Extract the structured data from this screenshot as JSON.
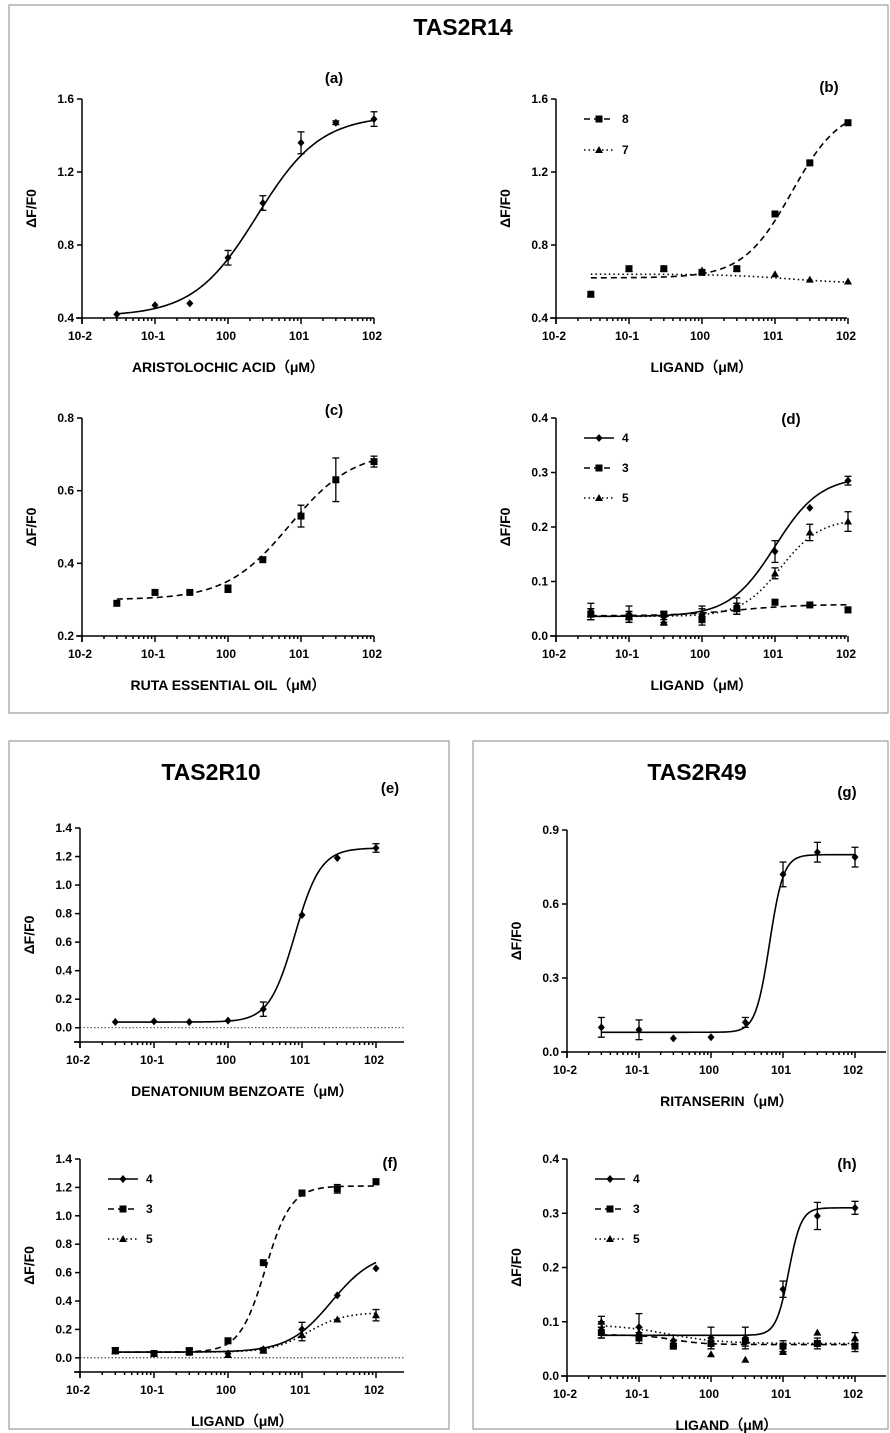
{
  "figure": {
    "title_top": "TAS2R14",
    "title_left": "TAS2R10",
    "title_right": "TAS2R49"
  },
  "chart_data": [
    {
      "id": "a",
      "panel_label": "(a)",
      "type": "scatter",
      "xlabel": "ARISTOLOCHIC ACID（μM）",
      "ylabel": "ΔF/F0",
      "x_scale": "log",
      "xlim": [
        0.01,
        100
      ],
      "ylim": [
        0.4,
        1.6
      ],
      "y_ticks": [
        "0.4",
        "0.8",
        "1.2",
        "1.6"
      ],
      "x_ticks": [
        "10-2",
        "10-1",
        "100",
        "101",
        "102"
      ],
      "legend_position": "none",
      "baseline": false,
      "series": [
        {
          "name": "",
          "marker": "diamond",
          "line": "solid",
          "x": [
            0.03,
            0.1,
            0.3,
            1,
            3,
            10,
            30,
            100
          ],
          "y": [
            0.42,
            0.47,
            0.48,
            0.73,
            1.03,
            1.36,
            1.47,
            1.49
          ],
          "err": [
            0,
            0,
            0,
            0.04,
            0.04,
            0.06,
            0.01,
            0.04
          ],
          "fit": {
            "bottom": 0.41,
            "top": 1.51,
            "ec50": 2.5,
            "hill": 1.0
          }
        }
      ]
    },
    {
      "id": "b",
      "panel_label": "(b)",
      "type": "scatter",
      "xlabel": "LIGAND（μM）",
      "ylabel": "ΔF/F0",
      "x_scale": "log",
      "xlim": [
        0.01,
        100
      ],
      "ylim": [
        0.4,
        1.6
      ],
      "y_ticks": [
        "0.4",
        "0.8",
        "1.2",
        "1.6"
      ],
      "x_ticks": [
        "10-2",
        "10-1",
        "100",
        "101",
        "102"
      ],
      "legend_position": "top-left",
      "baseline": false,
      "series": [
        {
          "name": "8",
          "marker": "square",
          "line": "dashed",
          "x": [
            0.03,
            0.1,
            0.3,
            1,
            3,
            10,
            30,
            100
          ],
          "y": [
            0.53,
            0.67,
            0.67,
            0.65,
            0.67,
            0.97,
            1.25,
            1.47
          ],
          "err": [
            0,
            0,
            0,
            0,
            0,
            0,
            0,
            0
          ],
          "fit": {
            "bottom": 0.62,
            "top": 1.56,
            "ec50": 17,
            "hill": 1.3
          }
        },
        {
          "name": "7",
          "marker": "triangle",
          "line": "dotted",
          "x": [
            0.03,
            0.1,
            0.3,
            1,
            3,
            10,
            30,
            100
          ],
          "y": [
            0.53,
            0.67,
            0.67,
            0.66,
            0.67,
            0.64,
            0.61,
            0.6
          ],
          "err": [
            0,
            0,
            0,
            0,
            0,
            0,
            0,
            0
          ],
          "fit": {
            "bottom": 0.64,
            "top": 0.59,
            "ec50": 15,
            "hill": 1.0,
            "lowclip": 0.62
          }
        }
      ]
    },
    {
      "id": "c",
      "panel_label": "(c)",
      "type": "scatter",
      "xlabel": "RUTA ESSENTIAL OIL（μM）",
      "ylabel": "ΔF/F0",
      "x_scale": "log",
      "xlim": [
        0.01,
        100
      ],
      "ylim": [
        0.2,
        0.8
      ],
      "y_ticks": [
        "0.2",
        "0.4",
        "0.6",
        "0.8"
      ],
      "x_ticks": [
        "10-2",
        "10-1",
        "100",
        "101",
        "102"
      ],
      "legend_position": "none",
      "baseline": false,
      "series": [
        {
          "name": "",
          "marker": "square",
          "line": "dashed",
          "x": [
            0.03,
            0.1,
            0.3,
            1,
            3,
            10,
            30,
            100
          ],
          "y": [
            0.29,
            0.32,
            0.32,
            0.33,
            0.41,
            0.53,
            0.63,
            0.68
          ],
          "err": [
            0,
            0,
            0,
            0.01,
            0,
            0.03,
            0.06,
            0.015
          ],
          "fit": {
            "bottom": 0.3,
            "top": 0.71,
            "ec50": 7,
            "hill": 1.0
          }
        }
      ]
    },
    {
      "id": "d",
      "panel_label": "(d)",
      "type": "scatter",
      "xlabel": "LIGAND（μM）",
      "ylabel": "ΔF/F0",
      "x_scale": "log",
      "xlim": [
        0.01,
        100
      ],
      "ylim": [
        0,
        0.4
      ],
      "y_ticks": [
        "0.0",
        "0.1",
        "0.2",
        "0.3",
        "0.4"
      ],
      "x_ticks": [
        "10-2",
        "10-1",
        "100",
        "101",
        "102"
      ],
      "legend_position": "top-left",
      "baseline": false,
      "series": [
        {
          "name": "4",
          "marker": "diamond",
          "line": "solid",
          "x": [
            0.03,
            0.1,
            0.3,
            1,
            3,
            10,
            30,
            100
          ],
          "y": [
            0.045,
            0.04,
            0.035,
            0.04,
            0.055,
            0.155,
            0.235,
            0.285
          ],
          "err": [
            0.015,
            0.015,
            0.01,
            0.015,
            0.015,
            0.02,
            0,
            0.008
          ],
          "fit": {
            "bottom": 0.036,
            "top": 0.293,
            "ec50": 10,
            "hill": 1.4
          }
        },
        {
          "name": "3",
          "marker": "square",
          "line": "dashed",
          "x": [
            0.03,
            0.1,
            0.3,
            1,
            3,
            10,
            30,
            100
          ],
          "y": [
            0.04,
            0.035,
            0.04,
            0.03,
            0.05,
            0.062,
            0.057,
            0.048
          ],
          "err": [
            0.01,
            0.01,
            0.005,
            0.01,
            0.01,
            0.005,
            0,
            0.005
          ],
          "fit": {
            "bottom": 0.037,
            "top": 0.058,
            "ec50": 3,
            "hill": 1.0
          }
        },
        {
          "name": "5",
          "marker": "triangle",
          "line": "dotted",
          "x": [
            0.03,
            0.1,
            0.3,
            1,
            3,
            10,
            30,
            100
          ],
          "y": [
            0.04,
            0.035,
            0.025,
            0.04,
            0.05,
            0.115,
            0.19,
            0.21
          ],
          "err": [
            0.01,
            0.01,
            0.005,
            0.01,
            0.01,
            0.01,
            0.015,
            0.018
          ],
          "fit": {
            "bottom": 0.036,
            "top": 0.215,
            "ec50": 12,
            "hill": 1.6
          }
        }
      ]
    },
    {
      "id": "e",
      "panel_label": "(e)",
      "type": "scatter",
      "xlabel": "DENATONIUM BENZOATE（μM）",
      "ylabel": "ΔF/F0",
      "x_scale": "log",
      "xlim": [
        0.01,
        300
      ],
      "ylim": [
        -0.1,
        1.4
      ],
      "y_ticks": [
        "0.0",
        "0.2",
        "0.4",
        "0.6",
        "0.8",
        "1.0",
        "1.2",
        "1.4"
      ],
      "x_ticks": [
        "10-2",
        "10-1",
        "100",
        "101",
        "102"
      ],
      "legend_position": "none",
      "baseline": true,
      "series": [
        {
          "name": "",
          "marker": "diamond",
          "line": "solid",
          "x": [
            0.03,
            0.1,
            0.3,
            1,
            3,
            10,
            30,
            100
          ],
          "y": [
            0.04,
            0.045,
            0.04,
            0.05,
            0.13,
            0.79,
            1.19,
            1.26
          ],
          "err": [
            0,
            0,
            0,
            0,
            0.05,
            0,
            0,
            0.03
          ],
          "fit": {
            "bottom": 0.04,
            "top": 1.26,
            "ec50": 8,
            "hill": 2.5
          }
        }
      ]
    },
    {
      "id": "f",
      "panel_label": "(f)",
      "type": "scatter",
      "xlabel": "LIGAND（μM）",
      "ylabel": "ΔF/F0",
      "x_scale": "log",
      "xlim": [
        0.01,
        300
      ],
      "ylim": [
        -0.1,
        1.4
      ],
      "y_ticks": [
        "0.0",
        "0.2",
        "0.4",
        "0.6",
        "0.8",
        "1.0",
        "1.2",
        "1.4"
      ],
      "x_ticks": [
        "10-2",
        "10-1",
        "100",
        "101",
        "102"
      ],
      "legend_position": "top-left",
      "baseline": true,
      "series": [
        {
          "name": "4",
          "marker": "diamond",
          "line": "solid",
          "x": [
            0.03,
            0.1,
            0.3,
            1,
            3,
            10,
            30,
            100
          ],
          "y": [
            0.05,
            0.03,
            0.04,
            0.03,
            0.06,
            0.2,
            0.44,
            0.63
          ],
          "err": [
            0.02,
            0,
            0.02,
            0,
            0.01,
            0.05,
            0,
            0
          ],
          "fit": {
            "bottom": 0.04,
            "top": 0.75,
            "ec50": 25,
            "hill": 1.5
          }
        },
        {
          "name": "3",
          "marker": "square",
          "line": "dashed",
          "x": [
            0.03,
            0.1,
            0.3,
            1,
            3,
            10,
            30,
            100
          ],
          "y": [
            0.05,
            0.03,
            0.05,
            0.12,
            0.67,
            1.16,
            1.19,
            1.24
          ],
          "err": [
            0.02,
            0,
            0.02,
            0.01,
            0,
            0.02,
            0.03,
            0.02
          ],
          "fit": {
            "bottom": 0.04,
            "top": 1.21,
            "ec50": 3.2,
            "hill": 2.5
          }
        },
        {
          "name": "5",
          "marker": "triangle",
          "line": "dotted",
          "x": [
            0.03,
            0.1,
            0.3,
            1,
            3,
            10,
            30,
            100
          ],
          "y": [
            0.05,
            0.03,
            0.04,
            0.02,
            0.05,
            0.16,
            0.27,
            0.3
          ],
          "err": [
            0.02,
            0,
            0.02,
            0,
            0.01,
            0.04,
            0,
            0.04
          ],
          "fit": {
            "bottom": 0.04,
            "top": 0.32,
            "ec50": 12,
            "hill": 1.8
          }
        }
      ]
    },
    {
      "id": "g",
      "panel_label": "(g)",
      "type": "scatter",
      "xlabel": "RITANSERIN（μM）",
      "ylabel": "ΔF/F0",
      "x_scale": "log",
      "xlim": [
        0.01,
        300
      ],
      "ylim": [
        0,
        0.9
      ],
      "y_ticks": [
        "0.0",
        "0.3",
        "0.6",
        "0.9"
      ],
      "x_ticks": [
        "10-2",
        "10-1",
        "100",
        "101",
        "102"
      ],
      "legend_position": "none",
      "baseline": false,
      "series": [
        {
          "name": "",
          "marker": "diamond",
          "line": "solid",
          "x": [
            0.03,
            0.1,
            0.3,
            1,
            3,
            10,
            30,
            100
          ],
          "y": [
            0.1,
            0.09,
            0.055,
            0.06,
            0.12,
            0.72,
            0.81,
            0.79
          ],
          "err": [
            0.04,
            0.04,
            0,
            0,
            0.02,
            0.05,
            0.04,
            0.04
          ],
          "fit": {
            "bottom": 0.08,
            "top": 0.8,
            "ec50": 6.5,
            "hill": 4.5
          }
        }
      ]
    },
    {
      "id": "h",
      "panel_label": "(h)",
      "type": "scatter",
      "xlabel": "LIGAND（μM）",
      "ylabel": "ΔF/F0",
      "x_scale": "log",
      "xlim": [
        0.01,
        300
      ],
      "ylim": [
        0,
        0.4
      ],
      "y_ticks": [
        "0.0",
        "0.1",
        "0.2",
        "0.3",
        "0.4"
      ],
      "x_ticks": [
        "10-2",
        "10-1",
        "100",
        "101",
        "102"
      ],
      "legend_position": "top-left",
      "baseline": false,
      "series": [
        {
          "name": "4",
          "marker": "diamond",
          "line": "solid",
          "x": [
            0.03,
            0.1,
            0.3,
            1,
            3,
            10,
            30,
            100
          ],
          "y": [
            0.085,
            0.09,
            0.065,
            0.07,
            0.07,
            0.16,
            0.295,
            0.31
          ],
          "err": [
            0.015,
            0.025,
            0.01,
            0.02,
            0.02,
            0.015,
            0.025,
            0.012
          ],
          "fit": {
            "bottom": 0.075,
            "top": 0.31,
            "ec50": 12,
            "hill": 5
          }
        },
        {
          "name": "3",
          "marker": "square",
          "line": "dashed",
          "x": [
            0.03,
            0.1,
            0.3,
            1,
            3,
            10,
            30,
            100
          ],
          "y": [
            0.08,
            0.07,
            0.055,
            0.06,
            0.065,
            0.055,
            0.06,
            0.055
          ],
          "err": [
            0.01,
            0.01,
            0.005,
            0.01,
            0.01,
            0.01,
            0.01,
            0.01
          ],
          "fit": {
            "bottom": 0.076,
            "top": 0.058,
            "ec50": 0.3,
            "hill": 2
          }
        },
        {
          "name": "5",
          "marker": "triangle",
          "line": "dotted",
          "x": [
            0.03,
            0.1,
            0.3,
            1,
            3,
            10,
            30,
            100
          ],
          "y": [
            0.1,
            0.08,
            0.06,
            0.04,
            0.03,
            0.045,
            0.08,
            0.07
          ],
          "err": [
            0.01,
            0.01,
            0.005,
            0,
            0,
            0.005,
            0,
            0.01
          ],
          "fit": {
            "bottom": 0.095,
            "top": 0.06,
            "ec50": 0.25,
            "hill": 1.2
          }
        }
      ]
    }
  ]
}
